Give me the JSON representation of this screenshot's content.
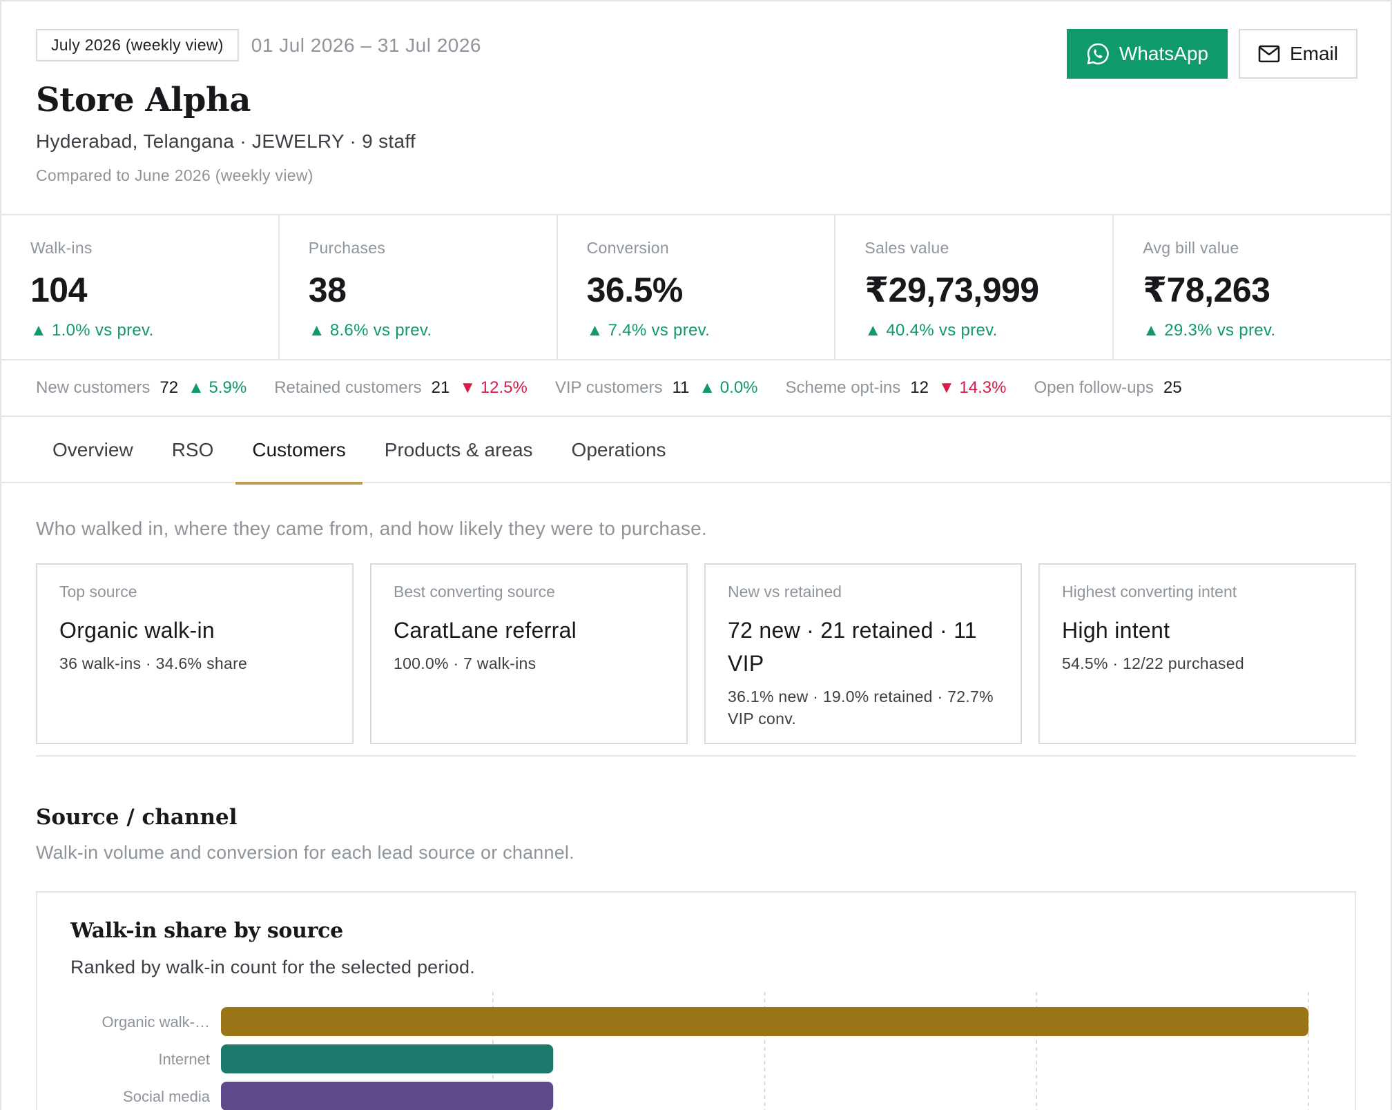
{
  "header": {
    "period_chip": "July 2026 (weekly view)",
    "date_range": "01 Jul 2026 – 31 Jul 2026",
    "store_name": "Store Alpha",
    "store_meta": "Hyderabad, Telangana · JEWELRY · 9 staff",
    "compare_note": "Compared to June 2026 (weekly view)",
    "whatsapp_label": "WhatsApp",
    "email_label": "Email"
  },
  "kpis": [
    {
      "label": "Walk-ins",
      "value": "104",
      "delta": "▲ 1.0% vs prev."
    },
    {
      "label": "Purchases",
      "value": "38",
      "delta": "▲ 8.6% vs prev."
    },
    {
      "label": "Conversion",
      "value": "36.5%",
      "delta": "▲ 7.4% vs prev."
    },
    {
      "label": "Sales value",
      "value": "₹29,73,999",
      "delta": "▲ 40.4% vs prev."
    },
    {
      "label": "Avg bill value",
      "value": "₹78,263",
      "delta": "▲ 29.3% vs prev."
    }
  ],
  "stats": [
    {
      "label": "New customers",
      "value": "72",
      "delta": "▲ 5.9%"
    },
    {
      "label": "Retained customers",
      "value": "21",
      "delta": "▼ 12.5%"
    },
    {
      "label": "VIP customers",
      "value": "11",
      "delta": "▲ 0.0%"
    },
    {
      "label": "Scheme opt-ins",
      "value": "12",
      "delta": "▼ 14.3%"
    },
    {
      "label": "Open follow-ups",
      "value": "25"
    }
  ],
  "tabs": [
    {
      "label": "Overview"
    },
    {
      "label": "RSO"
    },
    {
      "label": "Customers"
    },
    {
      "label": "Products & areas"
    },
    {
      "label": "Operations"
    }
  ],
  "active_tab": "Customers",
  "intro": "Who walked in, where they came from, and how likely they were to purchase.",
  "cards": [
    {
      "label": "Top source",
      "title": "Organic walk-in",
      "sub": "36 walk-ins · 34.6% share"
    },
    {
      "label": "Best converting source",
      "title": "CaratLane referral",
      "sub": "100.0% · 7 walk-ins"
    },
    {
      "label": "New vs retained",
      "title": "72 new · 21 retained · 11 VIP",
      "sub": "36.1% new · 19.0% retained · 72.7% VIP conv."
    },
    {
      "label": "Highest converting intent",
      "title": "High intent",
      "sub": "54.5% · 12/22 purchased"
    }
  ],
  "section": {
    "title": "Source / channel",
    "subtitle": "Walk-in volume and conversion for each lead source or channel."
  },
  "chart_panel": {
    "title": "Walk-in share by source",
    "subtitle": "Ranked by walk-in count for the selected period."
  },
  "colors": {
    "accent_green": "#0f9a6c",
    "negative_red": "#d81b48",
    "tab_underline": "#c19a4d"
  },
  "chart_data": {
    "type": "bar",
    "orientation": "horizontal",
    "categories": [
      "Organic walk-…",
      "Internet",
      "Social media"
    ],
    "values": [
      36,
      11,
      11
    ],
    "colors": [
      "#997518",
      "#1b7a6c",
      "#5e4a8a"
    ],
    "xlim": [
      0,
      36
    ],
    "grid": true
  }
}
